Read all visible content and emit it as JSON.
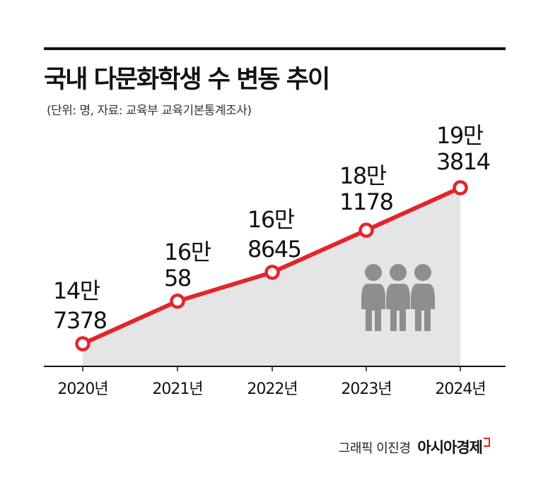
{
  "header": {
    "title": "국내 다문화학생 수 변동 추이",
    "subtitle": "(단위: 명, 자료: 교육부 교육기본통계조사)"
  },
  "footer": {
    "credit": "그래픽 이진경",
    "brand": "아시아경제"
  },
  "colors": {
    "line": "#e0272d",
    "area": "#e5e5e7",
    "icon": "#8e8e90",
    "axis": "#111111"
  },
  "chart_data": {
    "type": "line",
    "categories": [
      "2020년",
      "2021년",
      "2022년",
      "2023년",
      "2024년"
    ],
    "values": [
      147378,
      160058,
      168645,
      181178,
      193814
    ],
    "data_labels": [
      [
        "14만",
        "7378"
      ],
      [
        "16만",
        "58"
      ],
      [
        "16만",
        "8645"
      ],
      [
        "18만",
        "1178"
      ],
      [
        "19만",
        "3814"
      ]
    ],
    "area_fill": true,
    "grid": false,
    "legend": "none",
    "decorative_icon": "people-group-icon"
  }
}
